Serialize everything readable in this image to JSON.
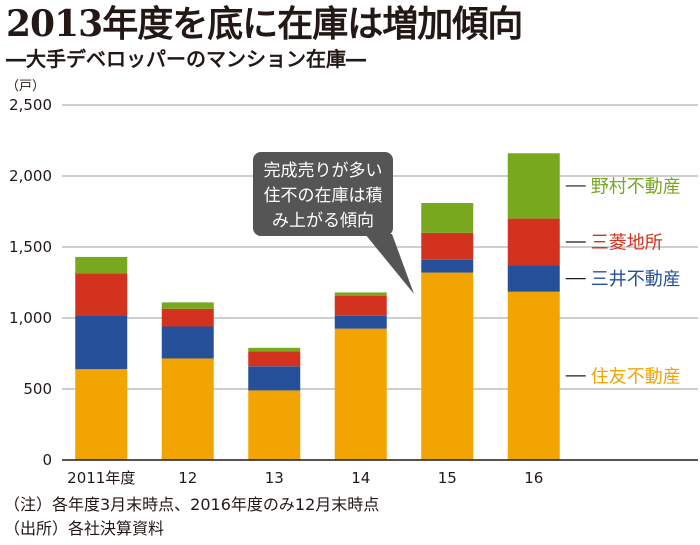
{
  "header": {
    "title": "2013年度を底に在庫は増加傾向",
    "subtitle": "―大手デベロッパーのマンション在庫―"
  },
  "notes": {
    "note1": "（注）各年度3月末時点、2016年度のみ12月末時点",
    "note2": "（出所）各社決算資料"
  },
  "chart_data": {
    "type": "bar",
    "stacked": true,
    "unit": "（戸）",
    "categories": [
      "2011年度",
      "12",
      "13",
      "14",
      "15",
      "16"
    ],
    "y_ticks": [
      "0",
      "500",
      "1,000",
      "1,500",
      "2,000",
      "2,500"
    ],
    "ylim": [
      0,
      2500
    ],
    "grid": true,
    "legend_position": "right",
    "series": [
      {
        "name": "住友不動産",
        "color": "#F2A400",
        "values": [
          640,
          715,
          490,
          925,
          1320,
          1185
        ]
      },
      {
        "name": "三井不動産",
        "color": "#27509B",
        "values": [
          380,
          225,
          170,
          90,
          90,
          185
        ]
      },
      {
        "name": "三菱地所",
        "color": "#D2321E",
        "values": [
          295,
          125,
          105,
          140,
          190,
          330
        ]
      },
      {
        "name": "野村不動産",
        "color": "#77A81E",
        "values": [
          115,
          45,
          25,
          25,
          210,
          460
        ]
      }
    ],
    "annotation": {
      "lines": [
        "完成売りが多い",
        "住不の在庫は積",
        "み上がる傾向"
      ]
    }
  }
}
